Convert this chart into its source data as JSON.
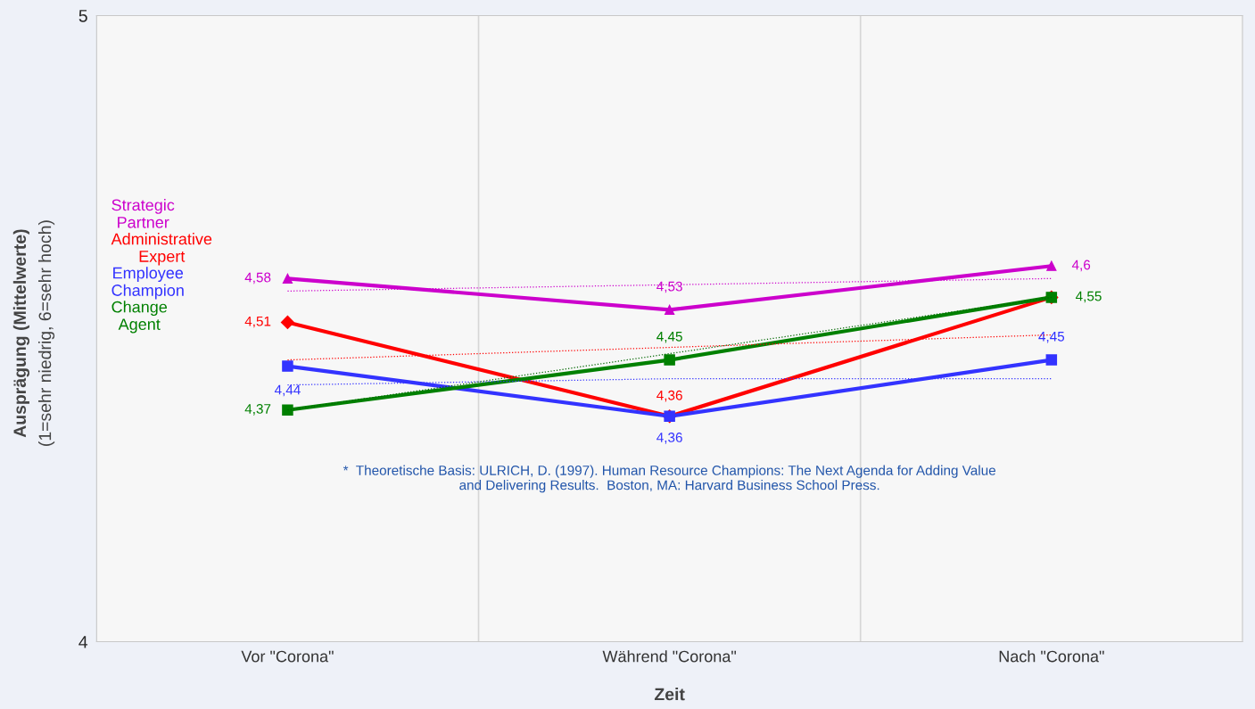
{
  "chart_data": {
    "type": "line",
    "categories": [
      "Vor \"Corona\"",
      "Während \"Corona\"",
      "Nach \"Corona\""
    ],
    "xlabel": "Zeit",
    "ylabel": "Ausprägung (Mittelwerte)\n(1=sehr niedrig, 6=sehr hoch)",
    "ylim": [
      4,
      5
    ],
    "yticks": [
      4,
      5
    ],
    "grid": "x",
    "legend": "left",
    "series": [
      {
        "name": "Strategic Partner",
        "color": "#cc00cc",
        "values": [
          4.58,
          4.53,
          4.6
        ],
        "marker": "triangle",
        "value_labels": [
          "4,58",
          "4,53",
          "4,6"
        ]
      },
      {
        "name": "Administrative Expert",
        "color": "#ff0000",
        "values": [
          4.51,
          4.36,
          4.55
        ],
        "marker": "diamond",
        "value_labels": [
          "4,51",
          "4,36",
          null
        ]
      },
      {
        "name": "Employee Champion",
        "color": "#3333ff",
        "values": [
          4.44,
          4.36,
          4.45
        ],
        "marker": "square",
        "value_labels": [
          "4,44",
          "4,36",
          "4,45"
        ]
      },
      {
        "name": "Change Agent",
        "color": "#008000",
        "values": [
          4.37,
          4.45,
          4.55
        ],
        "marker": "square",
        "value_labels": [
          "4,37",
          "4,45",
          "4,55"
        ]
      },
      {
        "type": "line",
        "color": "#cc00cc",
        "values": [
          4.56,
          4.57,
          4.58
        ],
        "line_style": "dotted",
        "marker": "none"
      },
      {
        "type": "line",
        "color": "#ff0000",
        "values": [
          4.45,
          4.47,
          4.49
        ],
        "line_style": "dotted",
        "marker": "none"
      },
      {
        "type": "line",
        "color": "#3333ff",
        "values": [
          4.41,
          4.42,
          4.42
        ],
        "line_style": "dotted",
        "marker": "none"
      },
      {
        "type": "line",
        "color": "#006600",
        "values": [
          4.37,
          4.46,
          4.55
        ],
        "line_style": "dotted",
        "marker": "none"
      }
    ],
    "annotations": [
      "*  Theoretische Basis: ULRICH, D. (1997). Human Resource Champions: The Next Agenda for Adding Value\nand Delivering Results.  Boston, MA: Harvard Business School Press."
    ]
  }
}
